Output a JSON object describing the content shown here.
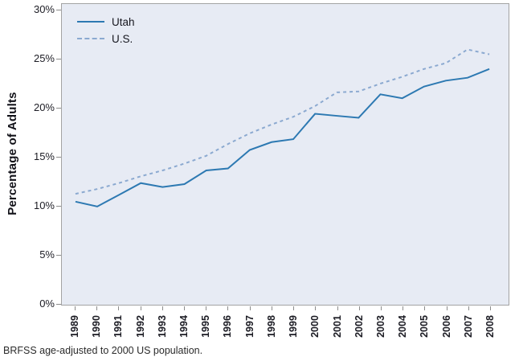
{
  "chart_data": {
    "type": "line",
    "title": "",
    "xlabel": "",
    "ylabel": "Percentage of Adults",
    "x": [
      "1989",
      "1990",
      "1991",
      "1992",
      "1993",
      "1994",
      "1995",
      "1996",
      "1997",
      "1998",
      "1999",
      "2000",
      "2001",
      "2002",
      "2003",
      "2004",
      "2005",
      "2006",
      "2007",
      "2008"
    ],
    "series": [
      {
        "name": "Utah",
        "style": "solid",
        "color": "#2d79b2",
        "values": [
          10.4,
          9.9,
          11.1,
          12.3,
          11.9,
          12.2,
          13.6,
          13.8,
          15.7,
          16.5,
          16.8,
          19.4,
          19.2,
          19.0,
          21.4,
          21.0,
          22.2,
          22.8,
          23.1,
          24.0
        ]
      },
      {
        "name": "U.S.",
        "style": "dashed",
        "color": "#8ba9d0",
        "values": [
          11.2,
          11.7,
          12.3,
          13.0,
          13.6,
          14.3,
          15.1,
          16.3,
          17.4,
          18.3,
          19.1,
          20.2,
          21.6,
          21.7,
          22.5,
          23.2,
          24.0,
          24.6,
          26.0,
          25.5
        ]
      }
    ],
    "ylim": [
      0,
      30
    ],
    "yticks": [
      0,
      5,
      10,
      15,
      20,
      25,
      30
    ],
    "ytick_labels": [
      "0%",
      "5%",
      "10%",
      "15%",
      "20%",
      "25%",
      "30%"
    ],
    "grid": false,
    "legend_position": "top-left",
    "plot_bg": "#e7ebf4"
  },
  "footnote": "BRFSS age-adjusted to 2000 US population."
}
